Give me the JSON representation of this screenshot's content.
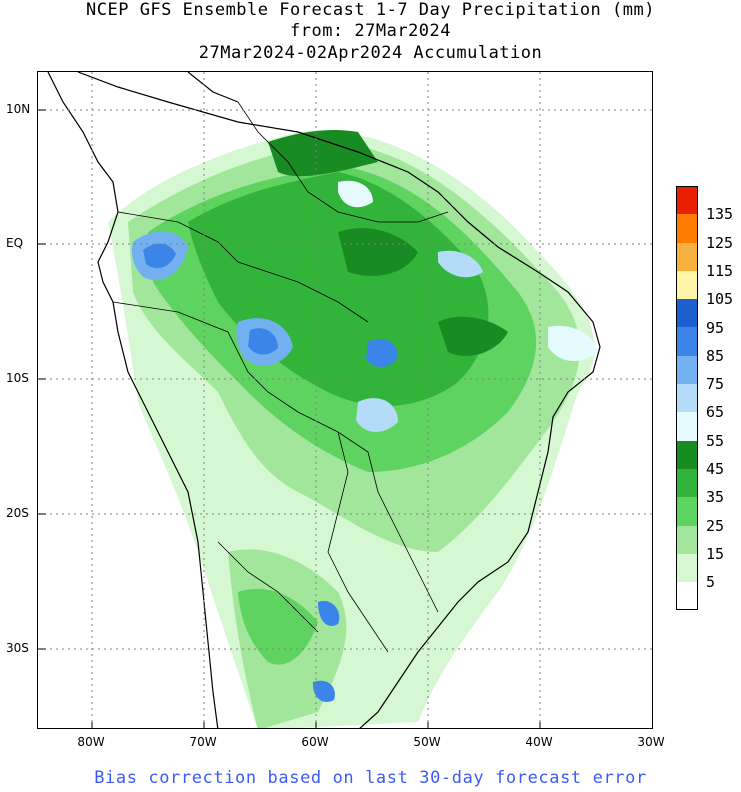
{
  "title": {
    "line1": "NCEP GFS Ensemble Forecast 1-7 Day Precipitation (mm)",
    "line2": "from: 27Mar2024",
    "line3": "27Mar2024-02Apr2024 Accumulation"
  },
  "axes": {
    "lon_labels": [
      "80W",
      "70W",
      "60W",
      "50W",
      "40W",
      "30W"
    ],
    "lat_labels": [
      "10N",
      "EQ",
      "10S",
      "20S",
      "30S"
    ],
    "lon_range": [
      -85,
      -30
    ],
    "lat_range": [
      14,
      -35
    ]
  },
  "legend": {
    "colors": [
      "#e82000",
      "#ff7c00",
      "#f6b13e",
      "#fff3a8",
      "#1d5fd1",
      "#3c85e8",
      "#73b0f0",
      "#b4dbf7",
      "#e5fbfd",
      "#188b22",
      "#32b43a",
      "#5fd35f",
      "#a2e69c",
      "#d5f7d1",
      "#ffffff"
    ],
    "ticks": [
      "135",
      "125",
      "115",
      "105",
      "95",
      "85",
      "75",
      "65",
      "55",
      "45",
      "35",
      "25",
      "15",
      "5"
    ]
  },
  "footer": "Bias correction based on last 30-day forecast error"
}
